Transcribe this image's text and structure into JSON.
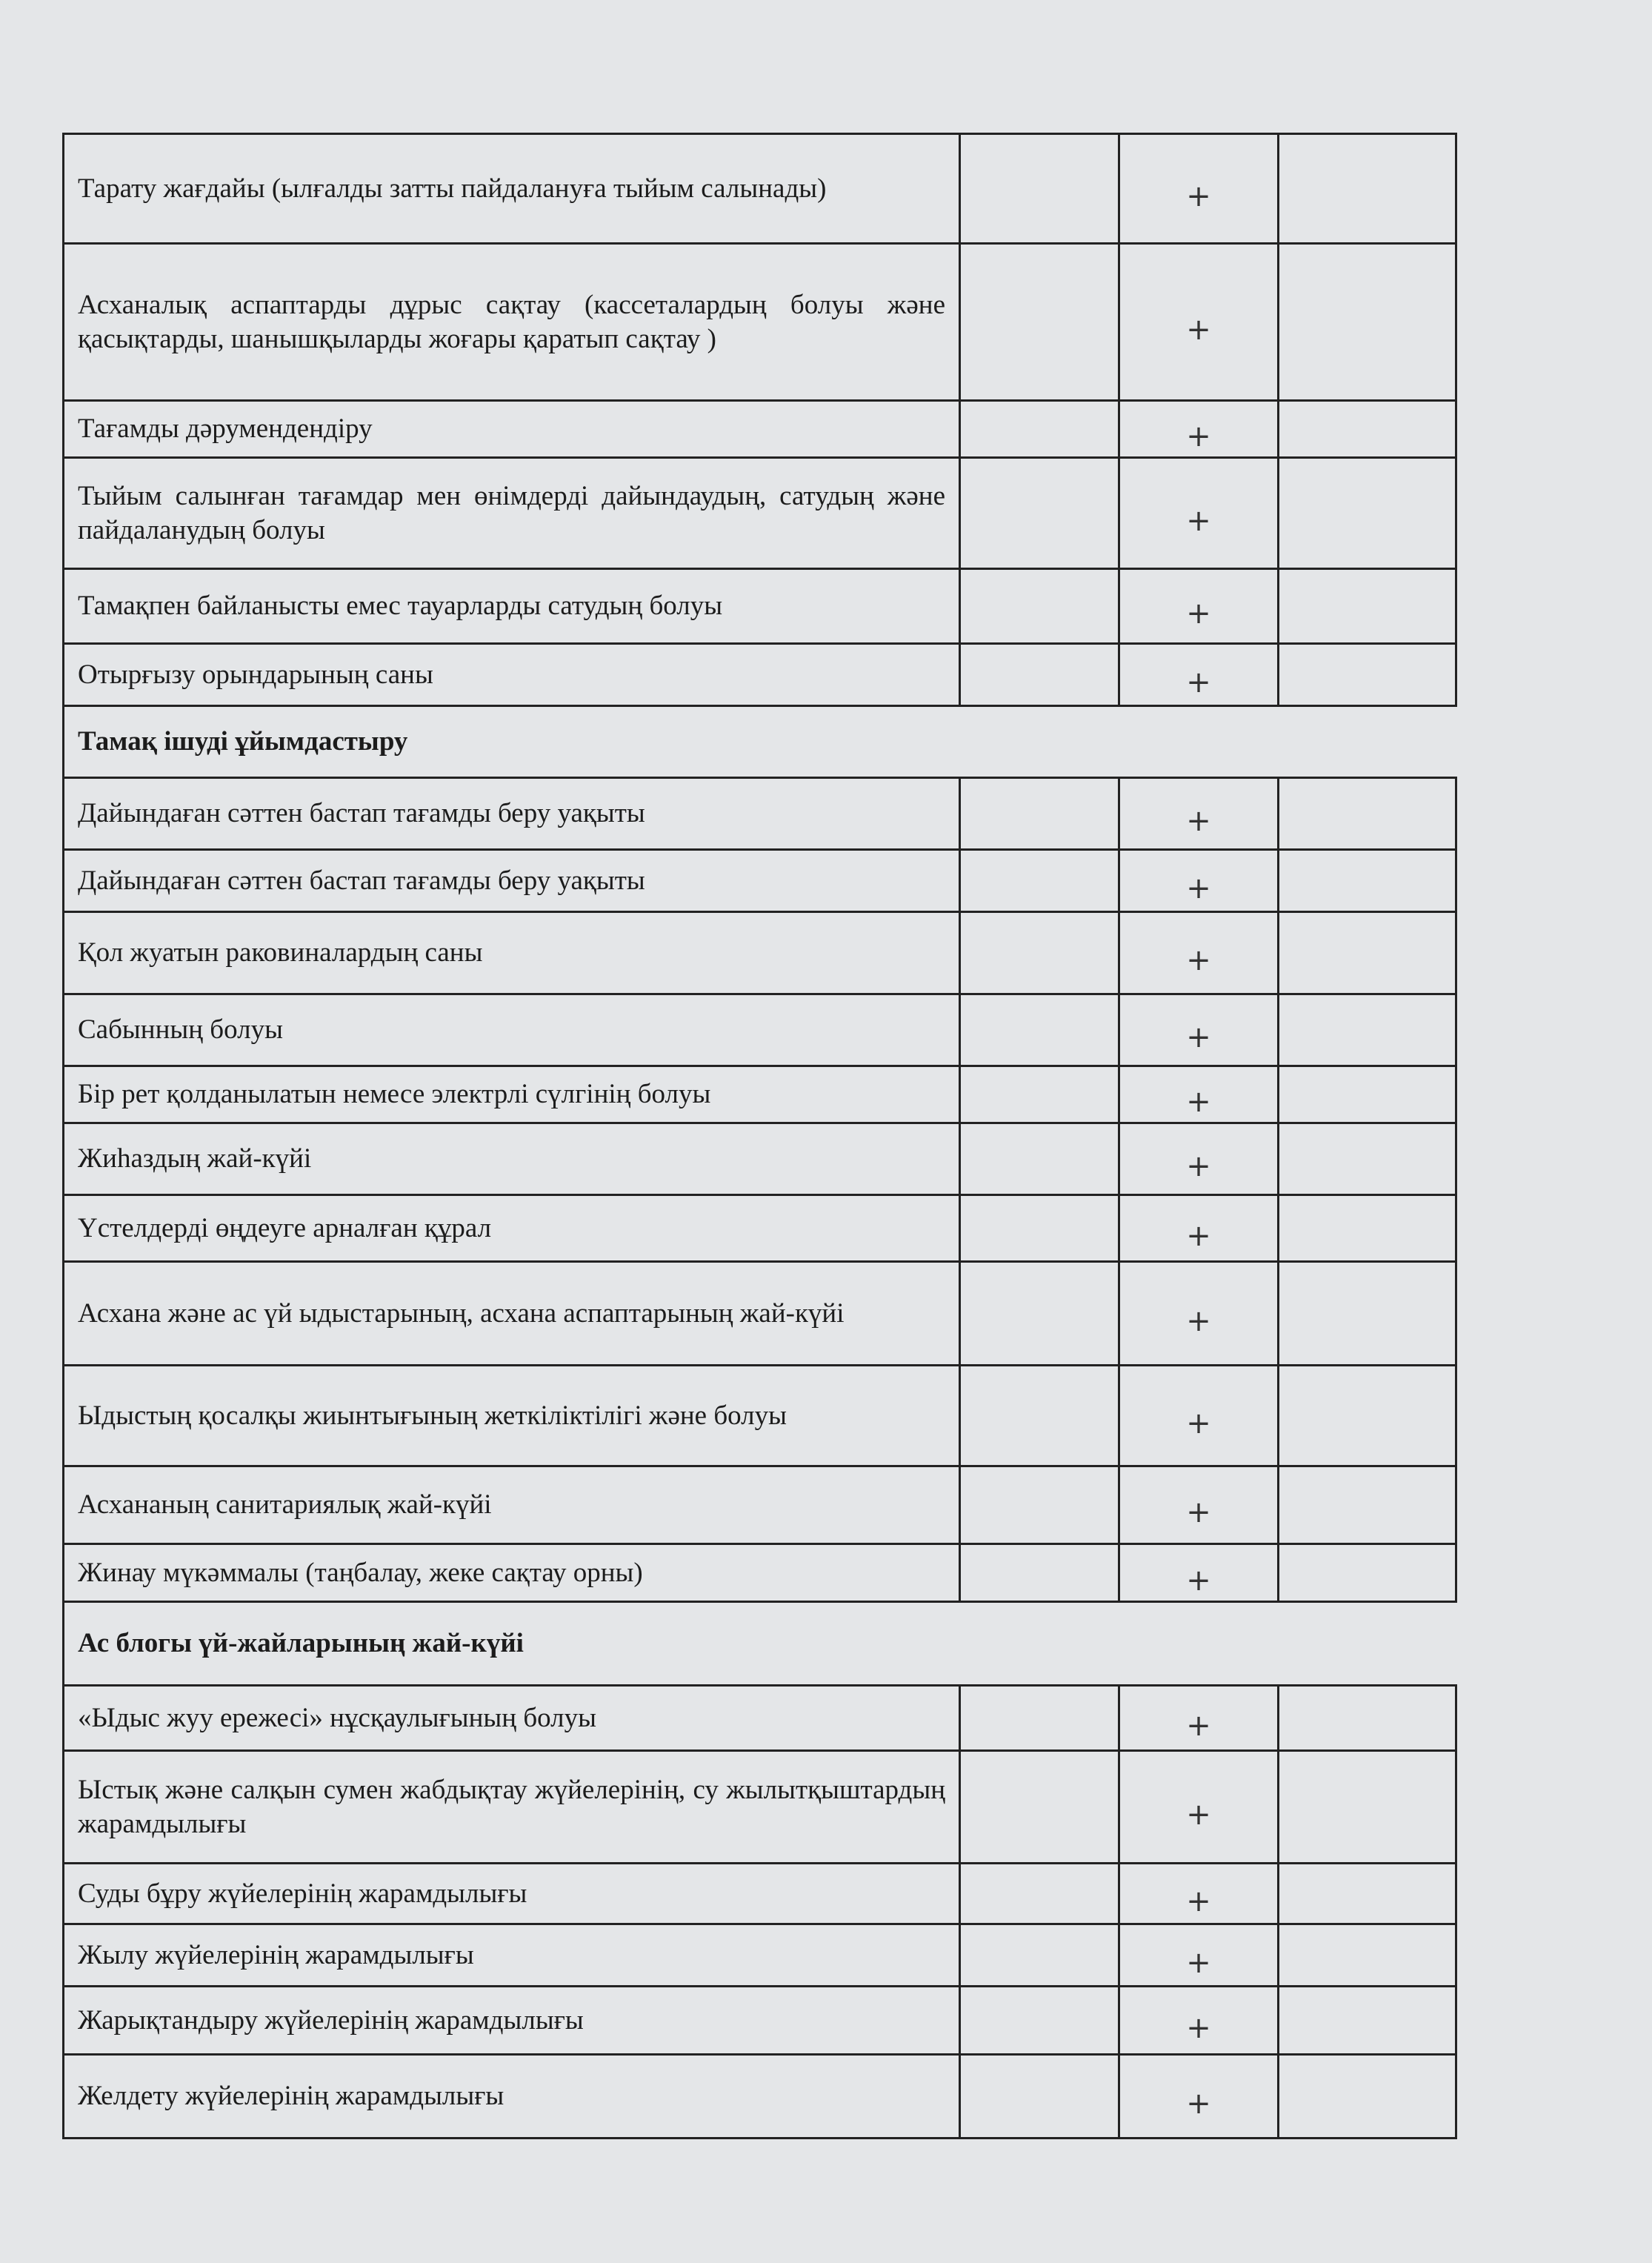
{
  "table": {
    "sections": [
      {
        "header": null,
        "rows": [
          {
            "label": "Тарату жағдайы (ылғалды затты пайдалануға тыйым салынады)",
            "mark": "+"
          },
          {
            "label": "Асханалық аспаптарды дұрыс сақтау (кассеталардың болуы және қасықтарды, шанышқыларды жоғары қаратып сақтау )",
            "mark": "+"
          },
          {
            "label": "Тағамды дәрумендендіру",
            "mark": "+"
          },
          {
            "label": "Тыйым салынған тағамдар мен өнімдерді дайындаудың, сатудың және пайдаланудың болуы",
            "mark": "+"
          },
          {
            "label": "Тамақпен байланысты емес тауарларды сатудың болуы",
            "mark": "+"
          },
          {
            "label": "Отырғызу орындарының саны",
            "mark": "+"
          }
        ]
      },
      {
        "header": "Тамақ ішуді ұйымдастыру",
        "rows": [
          {
            "label": "Дайындаған сәттен бастап тағамды беру уақыты",
            "mark": "+"
          },
          {
            "label": "Дайындаған сәттен бастап тағамды беру уақыты",
            "mark": "+"
          },
          {
            "label": "Қол жуатын раковиналардың саны",
            "mark": "+"
          },
          {
            "label": "Сабынның болуы",
            "mark": "+"
          },
          {
            "label": "Бір рет қолданылатын немесе электрлі сүлгінің болуы",
            "mark": "+"
          },
          {
            "label": "Жиһаздың жай-күйі",
            "mark": "+"
          },
          {
            "label": "Үстелдерді өңдеуге арналған құрал",
            "mark": "+"
          },
          {
            "label": "Асхана және ас үй ыдыстарының, асхана аспаптарының жай-күйі",
            "mark": "+"
          },
          {
            "label": "Ыдыстың қосалқы жиынтығының жеткіліктілігі және болуы",
            "mark": "+"
          },
          {
            "label": "Асхананың санитариялық жай-күйі",
            "mark": "+"
          },
          {
            "label": "Жинау мүкәммалы (таңбалау, жеке сақтау орны)",
            "mark": "+"
          }
        ]
      },
      {
        "header": "Ас блогы үй-жайларының жай-күйі",
        "rows": [
          {
            "label": "«Ыдыс жуу ережесі» нұсқаулығының болуы",
            "mark": "+"
          },
          {
            "label": "Ыстық және салқын сумен жабдықтау жүйелерінің, су жылытқыштардың жарамдылығы",
            "mark": "+"
          },
          {
            "label": "Суды бұру жүйелерінің жарамдылығы",
            "mark": "+"
          },
          {
            "label": "Жылу жүйелерінің жарамдылығы",
            "mark": "+"
          },
          {
            "label": "Жарықтандыру жүйелерінің жарамдылығы",
            "mark": "+"
          },
          {
            "label": "Желдету жүйелерінің жарамдылығы",
            "mark": "+"
          }
        ]
      }
    ]
  }
}
